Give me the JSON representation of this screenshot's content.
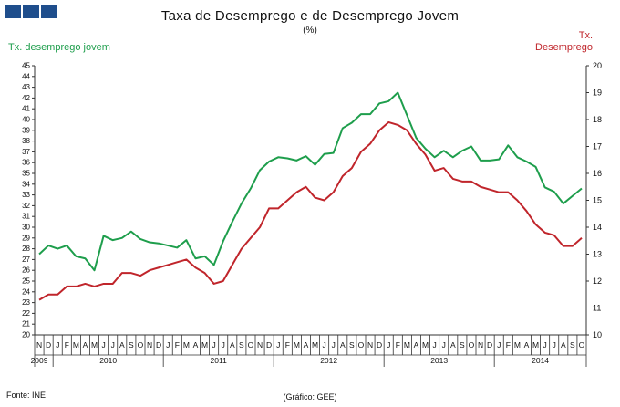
{
  "header": {
    "title": "Taxa de Desemprego e de Desemprego Jovem",
    "subtitle": "(%)"
  },
  "legend": {
    "left_label": "Tx. desemprego jovem",
    "right_label_line1": "Tx.",
    "right_label_line2": "Desemprego"
  },
  "footer": {
    "source": "Fonte: INE",
    "credit": "(Gráfico: GEE)"
  },
  "colors": {
    "youth": "#1e9e4c",
    "total": "#c0252b",
    "logo": "#1f4e8c"
  },
  "chart_data": {
    "type": "line",
    "title": "Taxa de Desemprego e de Desemprego Jovem",
    "subtitle": "(%)",
    "x": [
      "N",
      "D",
      "J",
      "F",
      "M",
      "A",
      "M",
      "J",
      "J",
      "A",
      "S",
      "O",
      "N",
      "D",
      "J",
      "F",
      "M",
      "A",
      "M",
      "J",
      "J",
      "A",
      "S",
      "O",
      "N",
      "D",
      "J",
      "F",
      "M",
      "A",
      "M",
      "J",
      "J",
      "A",
      "S",
      "O",
      "N",
      "D",
      "J",
      "F",
      "M",
      "A",
      "M",
      "J",
      "J",
      "A",
      "S",
      "O",
      "N",
      "D",
      "J",
      "F",
      "M",
      "A",
      "M",
      "J",
      "J",
      "A",
      "S",
      "O"
    ],
    "year_labels": [
      {
        "label": "2009",
        "index": 0
      },
      {
        "label": "2010",
        "index": 7.5
      },
      {
        "label": "2011",
        "index": 19.5
      },
      {
        "label": "2012",
        "index": 31.5
      },
      {
        "label": "2013",
        "index": 43.5
      },
      {
        "label": "2014",
        "index": 54.5
      }
    ],
    "year_separators": [
      2,
      14,
      26,
      38,
      50
    ],
    "series": [
      {
        "name": "Tx. desemprego jovem",
        "axis": "left",
        "color": "#1e9e4c",
        "values": [
          27.5,
          28.3,
          28.0,
          28.3,
          27.3,
          27.1,
          26.0,
          29.2,
          28.8,
          29.0,
          29.6,
          28.9,
          28.6,
          28.5,
          28.3,
          28.1,
          28.8,
          27.1,
          27.3,
          26.5,
          28.7,
          30.5,
          32.2,
          33.6,
          35.3,
          36.1,
          36.5,
          36.4,
          36.2,
          36.6,
          35.8,
          36.8,
          36.9,
          39.2,
          39.7,
          40.5,
          40.5,
          41.5,
          41.7,
          42.5,
          40.4,
          38.3,
          37.3,
          36.5,
          37.1,
          36.5,
          37.1,
          37.5,
          36.2,
          36.2,
          36.3,
          37.6,
          36.5,
          36.1,
          35.6,
          33.7,
          33.3,
          32.2,
          32.9,
          33.6
        ]
      },
      {
        "name": "Tx. Desemprego",
        "axis": "right",
        "color": "#c0252b",
        "values": [
          11.3,
          11.5,
          11.5,
          11.8,
          11.8,
          11.9,
          11.8,
          11.9,
          11.9,
          12.3,
          12.3,
          12.2,
          12.4,
          12.5,
          12.6,
          12.7,
          12.8,
          12.5,
          12.3,
          11.9,
          12.0,
          12.6,
          13.2,
          13.6,
          14.0,
          14.7,
          14.7,
          15.0,
          15.3,
          15.5,
          15.1,
          15.0,
          15.3,
          15.9,
          16.2,
          16.8,
          17.1,
          17.6,
          17.9,
          17.8,
          17.6,
          17.1,
          16.7,
          16.1,
          16.2,
          15.8,
          15.7,
          15.7,
          15.5,
          15.4,
          15.3,
          15.3,
          15.0,
          14.6,
          14.1,
          13.8,
          13.7,
          13.3,
          13.3,
          13.6
        ]
      }
    ],
    "y_left": {
      "min": 20,
      "max": 45,
      "step": 1,
      "label": "Tx. desemprego jovem"
    },
    "y_right": {
      "min": 10,
      "max": 20,
      "step": 1,
      "label": "Tx. Desemprego"
    },
    "grid": false,
    "xlabel": "",
    "ylabel": ""
  }
}
